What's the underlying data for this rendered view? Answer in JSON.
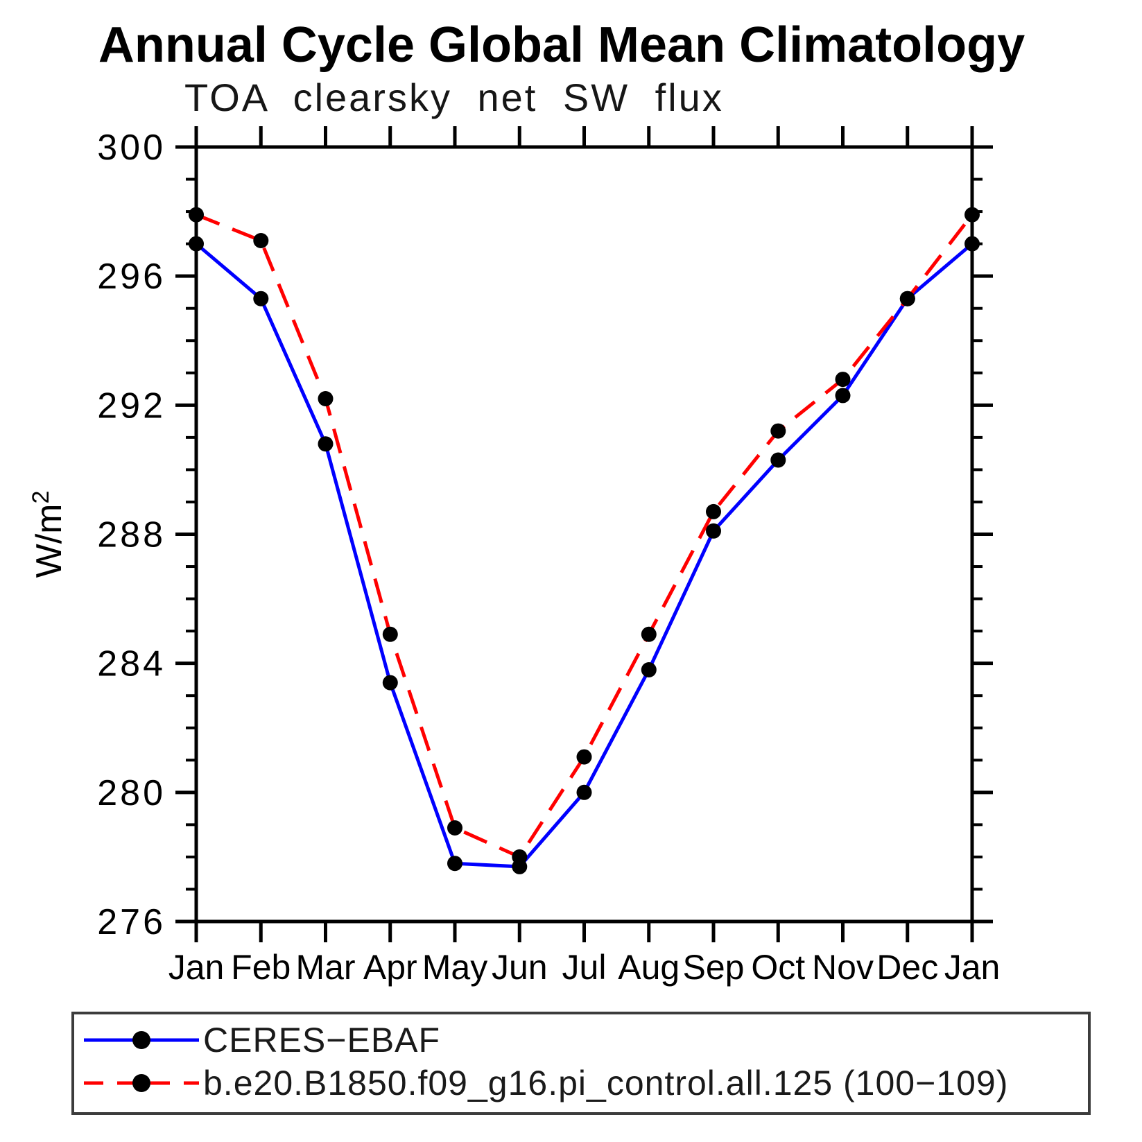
{
  "title": "Annual Cycle Global Mean Climatology",
  "subtitle": "TOA clearsky net SW flux",
  "colors": {
    "obs_line": "#0000ff",
    "model_line": "#ff0000",
    "marker": "#000000",
    "axis": "#000000",
    "legend_border": "#3c3c3c",
    "background": "#ffffff"
  },
  "chart_data": {
    "type": "line",
    "title": "Annual Cycle Global Mean Climatology",
    "subtitle": "TOA clearsky net SW flux",
    "xlabel": "",
    "ylabel": "W/m²",
    "ylim": [
      276,
      300
    ],
    "y_major_ticks": [
      276,
      280,
      284,
      288,
      292,
      296,
      300
    ],
    "y_minor_step": 1,
    "grid": false,
    "legend_position": "bottom",
    "categories": [
      "Jan",
      "Feb",
      "Mar",
      "Apr",
      "May",
      "Jun",
      "Jul",
      "Aug",
      "Sep",
      "Oct",
      "Nov",
      "Dec",
      "Jan"
    ],
    "series": [
      {
        "name": "CERES−EBAF",
        "color": "#0000ff",
        "style": "solid",
        "marker": "circle",
        "marker_color": "#000000",
        "values": [
          297.0,
          295.3,
          290.8,
          283.4,
          277.8,
          277.7,
          280.0,
          283.8,
          288.1,
          290.3,
          292.3,
          295.3,
          297.0
        ]
      },
      {
        "name": "b.e20.B1850.f09_g16.pi_control.all.125 (100−109)",
        "color": "#ff0000",
        "style": "dashed",
        "marker": "circle",
        "marker_color": "#000000",
        "values": [
          297.9,
          297.1,
          292.2,
          284.9,
          278.9,
          278.0,
          281.1,
          284.9,
          288.7,
          291.2,
          292.8,
          295.3,
          297.9
        ]
      }
    ]
  }
}
